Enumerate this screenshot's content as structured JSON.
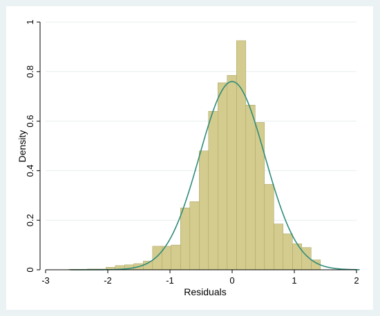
{
  "chart_data": {
    "type": "bar",
    "title": "",
    "xlabel": "Residuals",
    "ylabel": "Density",
    "xlim": [
      -3,
      2
    ],
    "ylim": [
      0,
      1
    ],
    "x_ticks": [
      -3,
      -2,
      -1,
      0,
      1,
      2
    ],
    "y_ticks": [
      0,
      0.2,
      0.4,
      0.6,
      0.8,
      1
    ],
    "x_tick_labels": [
      "-3",
      "-2",
      "-1",
      "0",
      "1",
      "2"
    ],
    "y_tick_labels": [
      "0",
      "0.2",
      "0.4",
      "0.6",
      "0.8",
      "1"
    ],
    "grid": true,
    "legend": "none",
    "bin_width": 0.15,
    "bins": [
      {
        "x0": -2.63,
        "density": 0.002
      },
      {
        "x0": -2.48,
        "density": 0.002
      },
      {
        "x0": -2.33,
        "density": 0.003
      },
      {
        "x0": -2.18,
        "density": 0.003
      },
      {
        "x0": -2.03,
        "density": 0.01
      },
      {
        "x0": -1.88,
        "density": 0.017
      },
      {
        "x0": -1.73,
        "density": 0.02
      },
      {
        "x0": -1.58,
        "density": 0.025
      },
      {
        "x0": -1.43,
        "density": 0.035
      },
      {
        "x0": -1.28,
        "density": 0.095
      },
      {
        "x0": -1.13,
        "density": 0.095
      },
      {
        "x0": -0.98,
        "density": 0.1
      },
      {
        "x0": -0.83,
        "density": 0.25
      },
      {
        "x0": -0.68,
        "density": 0.275
      },
      {
        "x0": -0.53,
        "density": 0.48
      },
      {
        "x0": -0.38,
        "density": 0.64
      },
      {
        "x0": -0.23,
        "density": 0.755
      },
      {
        "x0": -0.08,
        "density": 0.785
      },
      {
        "x0": 0.07,
        "density": 0.925
      },
      {
        "x0": 0.22,
        "density": 0.665
      },
      {
        "x0": 0.37,
        "density": 0.595
      },
      {
        "x0": 0.52,
        "density": 0.345
      },
      {
        "x0": 0.67,
        "density": 0.185
      },
      {
        "x0": 0.82,
        "density": 0.145
      },
      {
        "x0": 0.97,
        "density": 0.105
      },
      {
        "x0": 1.12,
        "density": 0.09
      },
      {
        "x0": 1.27,
        "density": 0.04
      }
    ],
    "normal_curve": {
      "mean": 0,
      "sd": 0.525,
      "x_range": [
        -2.6,
        2.05
      ]
    },
    "colors": {
      "bar_fill": "#d4cc8e",
      "bar_stroke": "#a49d5c",
      "curve": "#2e8b7a",
      "outer_background": "#eaf2f3",
      "plot_background": "#ffffff",
      "grid": "#e7eeef"
    }
  }
}
